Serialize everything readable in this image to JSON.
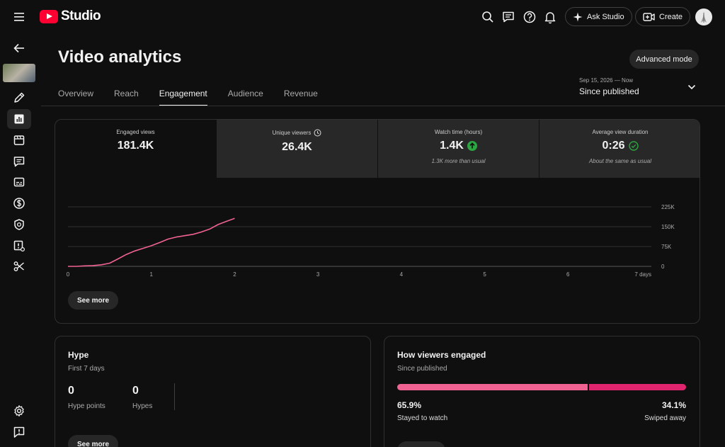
{
  "app": {
    "logo_text": "Studio",
    "ask_label": "Ask Studio",
    "create_label": "Create"
  },
  "page": {
    "title": "Video analytics",
    "advanced_mode_label": "Advanced mode",
    "tabs": [
      {
        "label": "Overview",
        "active": false
      },
      {
        "label": "Reach",
        "active": false
      },
      {
        "label": "Engagement",
        "active": true
      },
      {
        "label": "Audience",
        "active": false
      },
      {
        "label": "Revenue",
        "active": false
      }
    ],
    "date_range": {
      "period": "Sep 15, 2026 — Now",
      "label": "Since published"
    }
  },
  "metrics": [
    {
      "label": "Engaged views",
      "value": "181.4K",
      "sub": "",
      "active": true,
      "badge": ""
    },
    {
      "label": "Unique viewers",
      "value": "26.4K",
      "sub": "",
      "active": false,
      "badge": "clock-icon"
    },
    {
      "label": "Watch time (hours)",
      "value": "1.4K",
      "sub": "1.3K more than usual",
      "active": false,
      "badge": "arrow-up-icon"
    },
    {
      "label": "Average view duration",
      "value": "0:26",
      "sub": "About the same as usual",
      "active": false,
      "badge": "check-circle-icon"
    }
  ],
  "chart_data": {
    "type": "line",
    "x_ticks": [
      "0",
      "1",
      "2",
      "3",
      "4",
      "5",
      "6",
      "7 days"
    ],
    "y_ticks": [
      "225K",
      "150K",
      "75K",
      "0"
    ],
    "xlim": [
      0,
      7
    ],
    "ylim": [
      0,
      225000
    ],
    "grid": true,
    "series": [
      {
        "color": "#f06292",
        "x": [
          0,
          0.1,
          0.2,
          0.3,
          0.4,
          0.5,
          0.6,
          0.7,
          0.8,
          0.9,
          1.0,
          1.1,
          1.2,
          1.3,
          1.4,
          1.5,
          1.6,
          1.7,
          1.8,
          1.9,
          2.0
        ],
        "y": [
          0,
          0,
          2000,
          3000,
          6000,
          12000,
          28000,
          45000,
          58000,
          68000,
          78000,
          90000,
          103000,
          111000,
          116000,
          121000,
          130000,
          141000,
          158000,
          170000,
          181400
        ]
      }
    ],
    "see_more_label": "See more"
  },
  "hype": {
    "title": "Hype",
    "subtitle": "First 7 days",
    "points_value": "0",
    "points_label": "Hype points",
    "hypes_value": "0",
    "hypes_label": "Hypes",
    "see_more_label": "See more"
  },
  "engaged": {
    "title": "How viewers engaged",
    "subtitle": "Since published",
    "stayed_pct": "65.9%",
    "stayed_fraction": 0.659,
    "stayed_label": "Stayed to watch",
    "swiped_pct": "34.1%",
    "swiped_label": "Swiped away",
    "colors": {
      "stayed": "#f06292",
      "swiped": "#e0246e"
    }
  },
  "rail_icons": [
    "arrow-left-icon",
    "pencil-icon",
    "analytics-icon",
    "editor-icon",
    "comments-icon",
    "subtitles-icon",
    "monetization-icon",
    "copyright-icon",
    "content-warning-icon",
    "clips-icon",
    "settings-icon",
    "feedback-icon"
  ]
}
